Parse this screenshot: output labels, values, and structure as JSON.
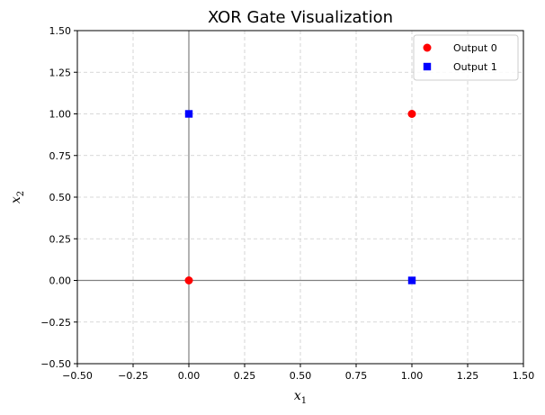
{
  "chart_data": {
    "type": "scatter",
    "title": "XOR Gate Visualization",
    "xlabel": {
      "base": "x",
      "sub": "1"
    },
    "ylabel": {
      "base": "x",
      "sub": "2"
    },
    "xlim": [
      -0.5,
      1.5
    ],
    "ylim": [
      -0.5,
      1.5
    ],
    "xticks": [
      -0.5,
      -0.25,
      0.0,
      0.25,
      0.5,
      0.75,
      1.0,
      1.25,
      1.5
    ],
    "yticks": [
      -0.5,
      -0.25,
      0.0,
      0.25,
      0.5,
      0.75,
      1.0,
      1.25,
      1.5
    ],
    "xtick_labels": [
      "−0.50",
      "−0.25",
      "0.00",
      "0.25",
      "0.50",
      "0.75",
      "1.00",
      "1.25",
      "1.50"
    ],
    "ytick_labels": [
      "−0.50",
      "−0.25",
      "0.00",
      "0.25",
      "0.50",
      "0.75",
      "1.00",
      "1.25",
      "1.50"
    ],
    "grid": true,
    "grid_style": "dashed",
    "reference_lines": {
      "x": 0,
      "y": 0,
      "color": "#808080"
    },
    "legend_position": "upper right",
    "series": [
      {
        "name": "Output 0",
        "marker": "circle",
        "color": "#ff0000",
        "points": [
          {
            "x": 0,
            "y": 0
          },
          {
            "x": 1,
            "y": 1
          }
        ]
      },
      {
        "name": "Output 1",
        "marker": "square",
        "color": "#0000ff",
        "points": [
          {
            "x": 0,
            "y": 1
          },
          {
            "x": 1,
            "y": 0
          }
        ]
      }
    ]
  }
}
